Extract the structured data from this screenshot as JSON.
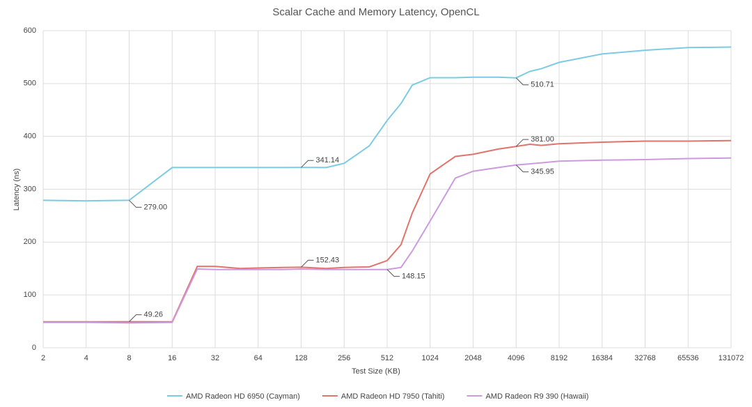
{
  "chart_data": {
    "type": "line",
    "title": "Scalar Cache and Memory Latency, OpenCL",
    "x_label": "Test Size (KB)",
    "y_label": "Latency (ns)",
    "xscale": "log2",
    "grid": true,
    "legend": "bottom",
    "x": [
      2,
      4,
      8,
      16,
      24,
      32,
      48,
      64,
      96,
      128,
      192,
      256,
      384,
      512,
      640,
      768,
      1024,
      1536,
      2048,
      3072,
      4096,
      5120,
      6144,
      8192,
      16384,
      32768,
      65536,
      131072
    ],
    "xlim": [
      2,
      131072
    ],
    "xticks": [
      2,
      4,
      8,
      16,
      32,
      64,
      128,
      256,
      512,
      1024,
      2048,
      4096,
      8192,
      16384,
      32768,
      65536,
      131072
    ],
    "ylim": [
      0,
      600
    ],
    "yticks": [
      0,
      100,
      200,
      300,
      400,
      500,
      600
    ],
    "series": [
      {
        "name": "AMD Radeon HD 6950 (Cayman)",
        "color": "#7ccbe4",
        "values": [
          279,
          278,
          279,
          341,
          341,
          341,
          341,
          341,
          341,
          341.14,
          341,
          349,
          382,
          430,
          462,
          497,
          511,
          511,
          512,
          512,
          510.71,
          523,
          528,
          540,
          556,
          563,
          568,
          569
        ],
        "value_labels": [
          null,
          null,
          "279.00",
          null,
          null,
          null,
          null,
          null,
          null,
          "341.14",
          null,
          null,
          null,
          null,
          null,
          null,
          null,
          null,
          null,
          null,
          "510.71",
          null,
          null,
          null,
          null,
          null,
          null,
          null
        ]
      },
      {
        "name": "AMD Radeon HD 7950 (Tahiti)",
        "color": "#e0736c",
        "values": [
          49,
          49,
          49.26,
          49,
          154,
          154,
          150,
          151,
          152,
          152.43,
          150,
          152,
          153,
          165,
          195,
          255,
          329,
          362,
          366,
          376,
          381,
          385,
          383,
          386,
          389,
          391,
          391,
          392
        ],
        "value_labels": [
          null,
          null,
          "49.26",
          null,
          null,
          null,
          null,
          null,
          null,
          "152.43",
          null,
          null,
          null,
          null,
          null,
          null,
          null,
          null,
          null,
          null,
          "381.00",
          null,
          null,
          null,
          null,
          null,
          null,
          null
        ]
      },
      {
        "name": "AMD Radeon R9 390 (Hawaii)",
        "color": "#cc9ade",
        "values": [
          48,
          48,
          47,
          48,
          149,
          148,
          148,
          148,
          148,
          149,
          148,
          148,
          148,
          148.15,
          152,
          183,
          240,
          321,
          334,
          341,
          345.95,
          348,
          350,
          353,
          355,
          356,
          358,
          359
        ],
        "value_labels": [
          null,
          null,
          null,
          null,
          null,
          null,
          null,
          null,
          null,
          null,
          null,
          null,
          null,
          "148.15",
          null,
          null,
          null,
          null,
          null,
          null,
          "345.95",
          null,
          null,
          null,
          null,
          null,
          null,
          null
        ]
      }
    ]
  }
}
